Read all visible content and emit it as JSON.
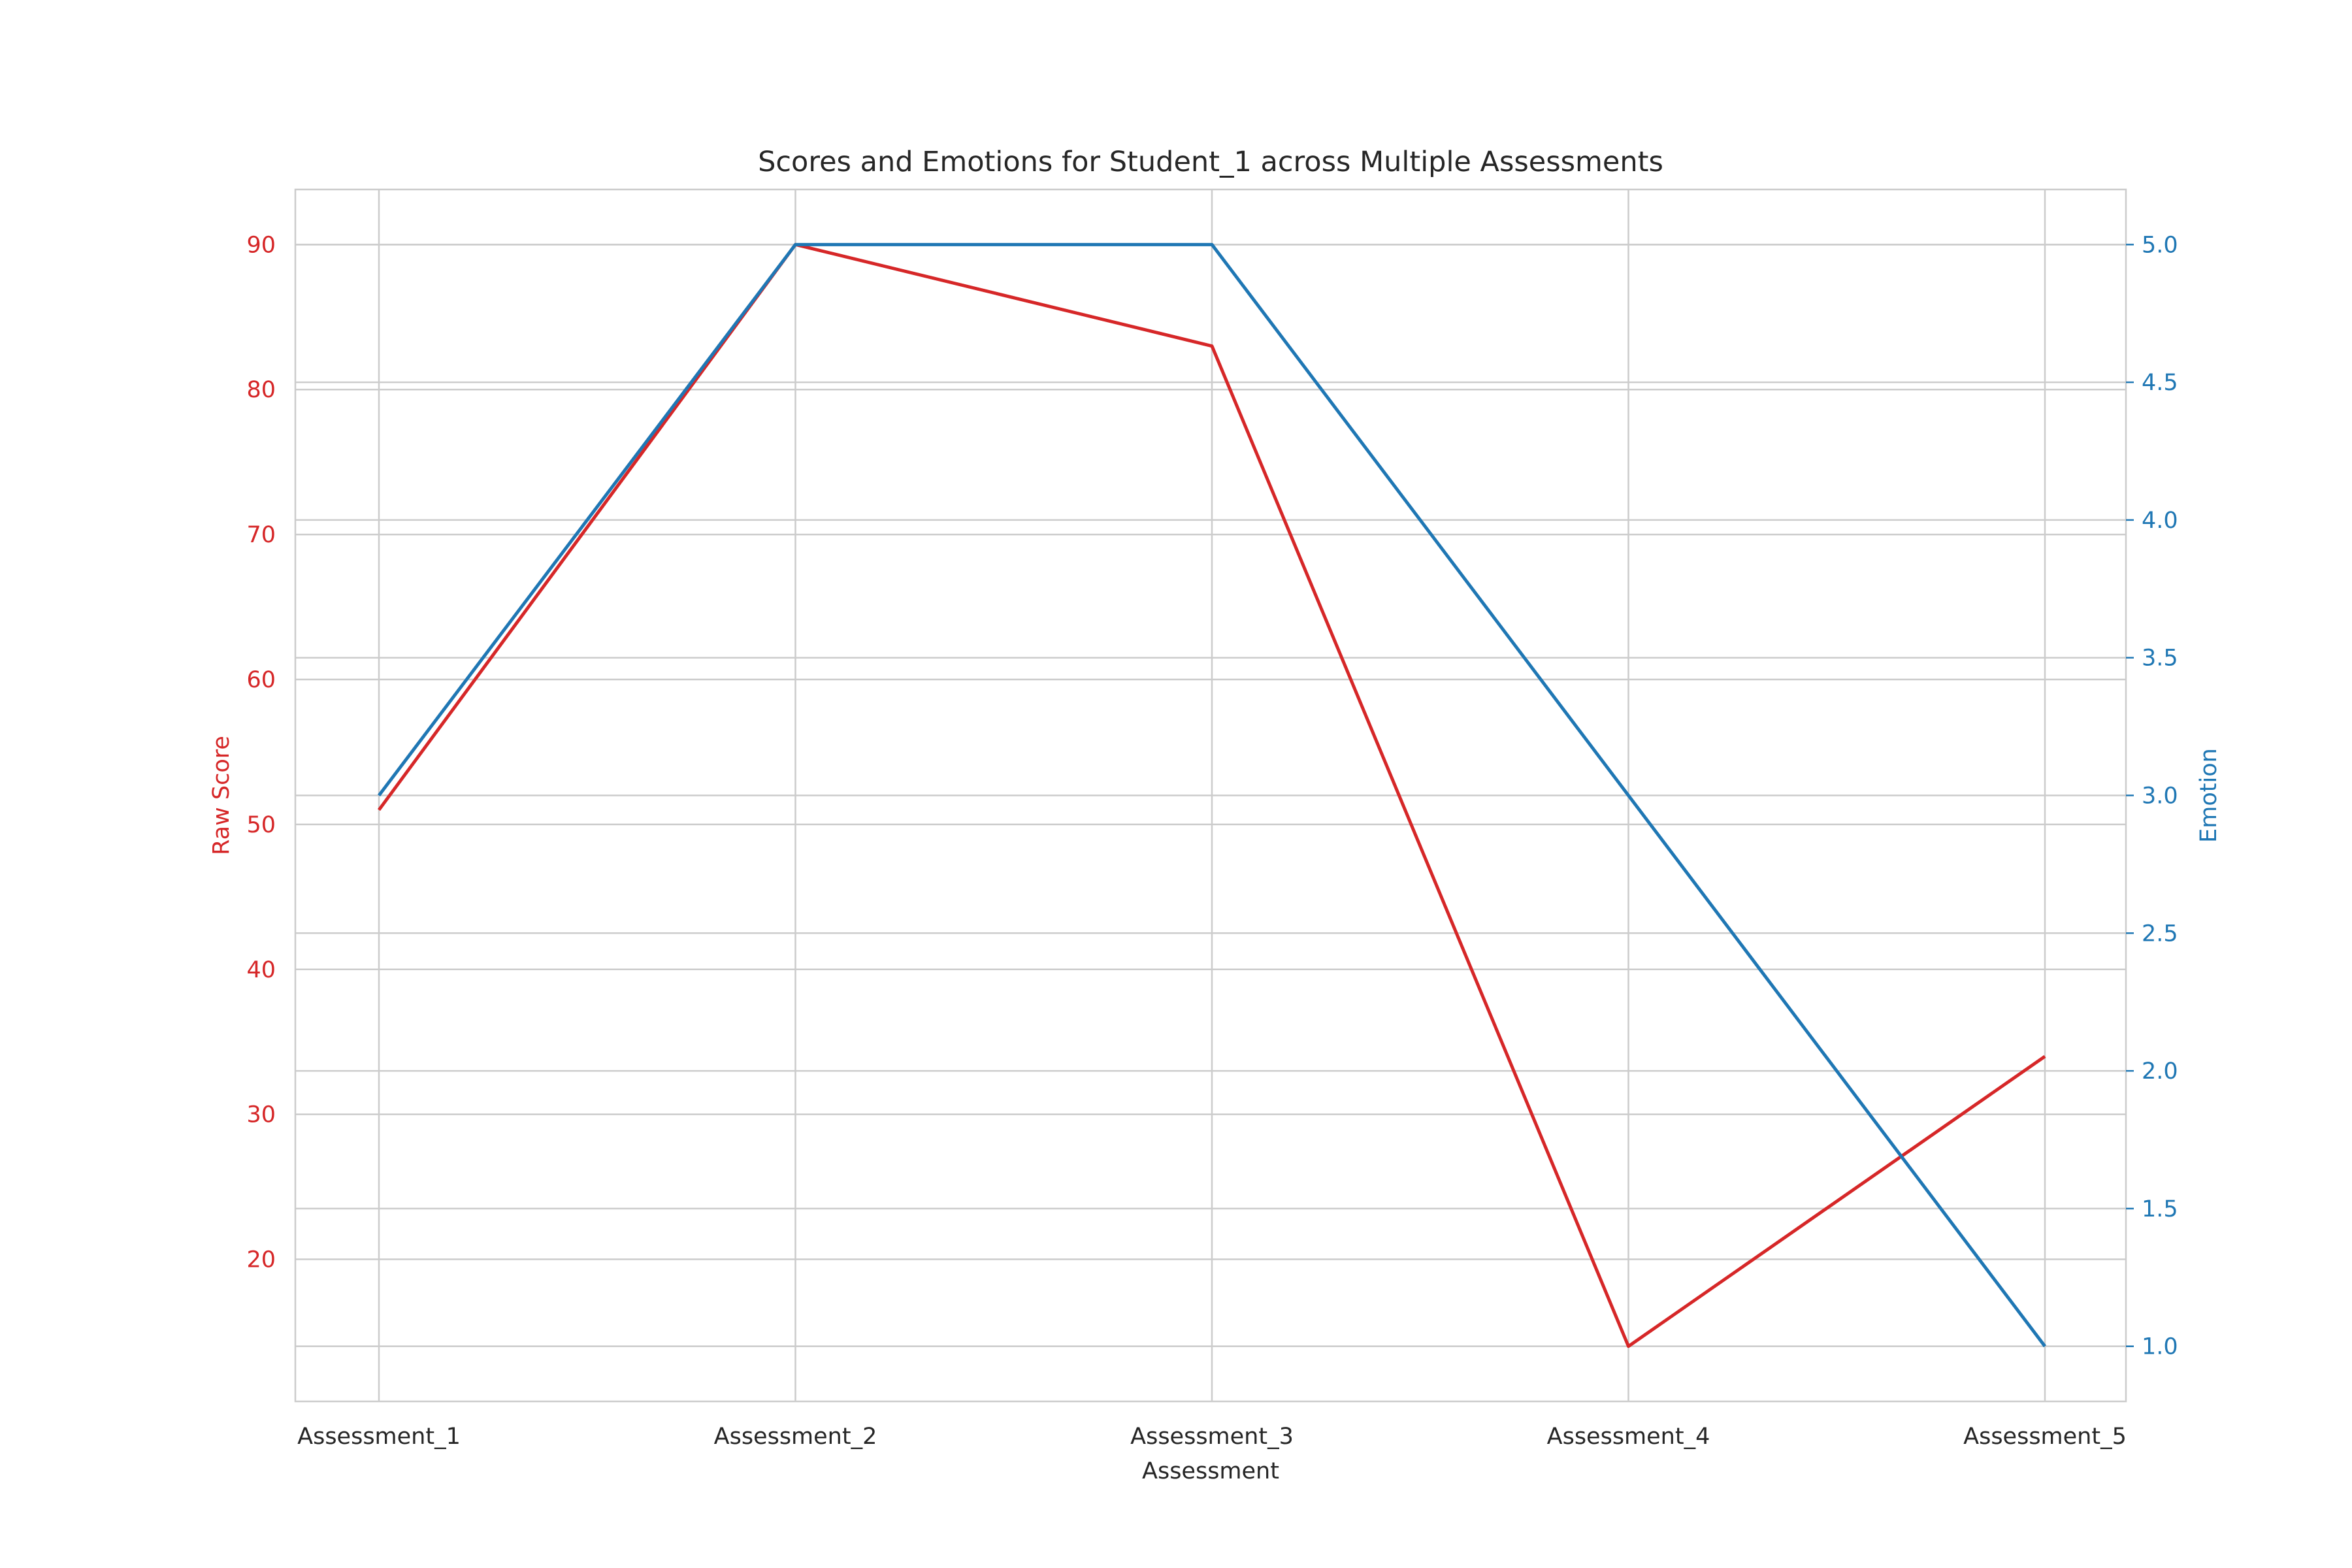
{
  "chart_data": {
    "type": "line",
    "title": "Scores and Emotions for Student_1 across Multiple Assessments",
    "xlabel": "Assessment",
    "categories": [
      "Assessment_1",
      "Assessment_2",
      "Assessment_3",
      "Assessment_4",
      "Assessment_5"
    ],
    "y_left": {
      "label": "Raw Score",
      "color": "#d62728",
      "ticks": [
        20,
        30,
        40,
        50,
        60,
        70,
        80,
        90
      ],
      "lim": [
        10.2,
        93.8
      ]
    },
    "y_right": {
      "label": "Emotion",
      "color": "#1f77b4",
      "ticks": [
        "1.0",
        "1.5",
        "2.0",
        "2.5",
        "3.0",
        "3.5",
        "4.0",
        "4.5",
        "5.0"
      ],
      "lim": [
        0.8,
        5.2
      ]
    },
    "series": [
      {
        "axis": "left",
        "color": "#d62728",
        "values": [
          51,
          90,
          83,
          14,
          34
        ]
      },
      {
        "axis": "right",
        "color": "#1f77b4",
        "values": [
          3,
          5,
          5,
          3,
          1
        ]
      }
    ],
    "grid": true,
    "legend": "none"
  }
}
